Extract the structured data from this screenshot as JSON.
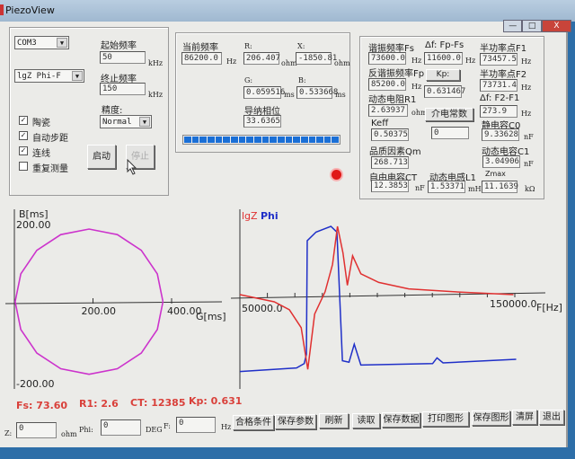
{
  "window": {
    "title": "PiezoView",
    "controls": [
      "—",
      "□",
      "X"
    ]
  },
  "left": {
    "port": "COM3",
    "mode": "lgZ Phi-F",
    "start_freq_label": "起始频率",
    "start_freq": "50",
    "start_unit": "kHz",
    "end_freq_label": "终止频率",
    "end_freq": "150",
    "end_unit": "kHz",
    "precision_label": "精度:",
    "precision": "Normal",
    "checkboxes": [
      {
        "label": "陶瓷",
        "checked": true
      },
      {
        "label": "自动步距",
        "checked": true
      },
      {
        "label": "连线",
        "checked": true
      },
      {
        "label": "重复测量",
        "checked": false
      }
    ],
    "start_button": "启动",
    "stop_button": "停止"
  },
  "middle": {
    "cur_freq_label": "当前频率",
    "cur_freq": "86200.0",
    "cur_freq_unit": "Hz",
    "r_label": "R:",
    "r": "206.407",
    "r_unit": "ohm",
    "x_label": "X:",
    "x": "-1850.81",
    "x_unit": "ohm",
    "g_label": "G:",
    "g": "0.059516",
    "g_unit": "ms",
    "b_label": "B:",
    "b": "0.533668",
    "b_unit": "ms",
    "phase_label": "导纳相位",
    "phase": "33.6365",
    "progress": 100
  },
  "right": {
    "fs_label": "谐振频率Fs",
    "fs": "73600.0",
    "fs_unit": "Hz",
    "df_label": "Δf: Fp-Fs",
    "df": "11600.0",
    "df_unit": "Hz",
    "f1_label": "半功率点F1",
    "f1": "73457.5",
    "f1_unit": "Hz",
    "fp_label": "反谐振频率Fp",
    "fp": "85200.0",
    "fp_unit": "Hz",
    "kp_button": "Kp:",
    "kp": "0.631467",
    "f2_label": "半功率点F2",
    "f2": "73731.4",
    "f2_unit": "Hz",
    "r1_label": "动态电阻R1",
    "r1": "2.63937",
    "r1_unit": "ohm",
    "dielectric_button": "介电常数",
    "dielectric": "0",
    "df2_label": "Δf: F2-F1",
    "df2": "273.9",
    "df2_unit": "Hz",
    "keff_label": "Keff",
    "keff": "0.50375",
    "c0_label": "静电容C0",
    "c0": "9.33628",
    "c0_unit": "nF",
    "qm_label": "品质因素Qm",
    "qm": "268.713",
    "c1_label": "动态电容C1",
    "c1": "3.04906",
    "c1_unit": "nF",
    "ct_label": "自由电容CT",
    "ct": "12.3853",
    "ct_unit": "nF",
    "l1_label": "动态电感L1",
    "l1": "1.53371",
    "l1_unit": "mH",
    "zmax_label": "Zmax",
    "zmax": "11.1639",
    "zmax_unit": "kΩ"
  },
  "chart_data": [
    {
      "type": "line",
      "xlabel": "G[ms]",
      "ylabel": "B[ms]",
      "x_ticks": [
        "200.00",
        "400.00"
      ],
      "y_ticks": [
        "200.00",
        "-200.00"
      ],
      "circle": {
        "center_g": 190,
        "center_b": 5,
        "radius": 188
      },
      "color": "#cc33cc"
    },
    {
      "type": "line",
      "xlabel": "F[Hz]",
      "x_ticks": [
        "50000.0",
        "150000.0"
      ],
      "legend": [
        {
          "name": "lgZ",
          "color": "#e03030"
        },
        {
          "name": "Phi",
          "color": "#1f2fc8"
        }
      ],
      "series": [
        {
          "name": "lgZ",
          "color": "#e03030",
          "points": [
            [
              50000,
              0.05
            ],
            [
              62500,
              -0.05
            ],
            [
              68000,
              -0.16
            ],
            [
              72300,
              -0.41
            ],
            [
              74700,
              -0.99
            ],
            [
              77200,
              -0.22
            ],
            [
              81000,
              0.09
            ],
            [
              83700,
              0.47
            ],
            [
              85500,
              1.0
            ],
            [
              87500,
              0.63
            ],
            [
              89100,
              0.18
            ],
            [
              91000,
              0.59
            ],
            [
              94000,
              0.34
            ],
            [
              100500,
              0.22
            ],
            [
              111400,
              0.13
            ],
            [
              127700,
              0.09
            ],
            [
              149500,
              0.05
            ]
          ]
        },
        {
          "name": "Phi",
          "color": "#1f2fc8",
          "points": [
            [
              50000,
              -1.02
            ],
            [
              70600,
              -0.97
            ],
            [
              73400,
              -0.91
            ],
            [
              74200,
              -0.78
            ],
            [
              74500,
              0.8
            ],
            [
              77700,
              0.92
            ],
            [
              83100,
              1.0
            ],
            [
              85300,
              0.92
            ],
            [
              87300,
              -0.87
            ],
            [
              89700,
              -0.89
            ],
            [
              91600,
              -0.64
            ],
            [
              94000,
              -0.93
            ],
            [
              120100,
              -0.91
            ],
            [
              121700,
              -0.83
            ],
            [
              123900,
              -0.9
            ],
            [
              150500,
              -0.85
            ]
          ]
        }
      ]
    }
  ],
  "summary": {
    "fs": "Fs: 73.60",
    "r1": "R1: 2.6",
    "ct": "CT: 12385",
    "kp": "Kp: 0.631"
  },
  "status": {
    "z_label": "Z:",
    "z": "0",
    "z_unit": "ohm",
    "phi_label": "Phi:",
    "phi": "0",
    "phi_unit": "DEG",
    "f_label": "F:",
    "f": "0",
    "f_unit": "Hz"
  },
  "buttons": [
    "合格条件",
    "保存参数",
    "刷新",
    "读取",
    "保存数据",
    "打印图形",
    "保存图形",
    "清屏",
    "退出"
  ]
}
